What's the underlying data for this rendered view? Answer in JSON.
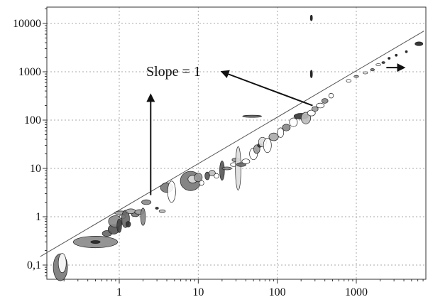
{
  "chart_data": {
    "type": "scatter",
    "title": "",
    "xlabel": "",
    "ylabel": "",
    "xscale": "log",
    "yscale": "log",
    "xlim": [
      0.1,
      8000
    ],
    "ylim": [
      0.05,
      20000
    ],
    "grid": true,
    "x_ticks": [
      {
        "value": 1,
        "label": "1"
      },
      {
        "value": 10,
        "label": "10"
      },
      {
        "value": 100,
        "label": "100"
      },
      {
        "value": 1000,
        "label": "1000"
      }
    ],
    "y_ticks": [
      {
        "value": 0.1,
        "label": "0,1"
      },
      {
        "value": 1,
        "label": "1"
      },
      {
        "value": 10,
        "label": "10"
      },
      {
        "value": 100,
        "label": "100"
      },
      {
        "value": 1000,
        "label": "1000"
      },
      {
        "value": 10000,
        "label": "10000"
      }
    ],
    "reference_line": {
      "slope": 1,
      "from": [
        0.1,
        0.15
      ],
      "to": [
        7200,
        7000
      ]
    },
    "annotation": {
      "text": "Slope = 1"
    },
    "arrows": [
      {
        "from": [
          2.5,
          2.8
        ],
        "to": [
          2.5,
          330
        ]
      },
      {
        "from": [
          280,
          200
        ],
        "to": [
          20,
          1000
        ]
      },
      {
        "from": [
          2400,
          1220
        ],
        "to": [
          4000,
          1220
        ]
      }
    ],
    "points": [
      {
        "x": 0.18,
        "y": 0.09,
        "rx": 0.09,
        "ry": 0.28,
        "fill": "#777777"
      },
      {
        "x": 0.19,
        "y": 0.11,
        "rx": 0.05,
        "ry": 0.2,
        "fill": "#ffffff"
      },
      {
        "x": 0.5,
        "y": 0.3,
        "rx": 0.28,
        "ry": 0.12,
        "fill": "#888888"
      },
      {
        "x": 0.5,
        "y": 0.3,
        "rx": 0.06,
        "ry": 0.03,
        "fill": "#222222"
      },
      {
        "x": 0.7,
        "y": 0.45,
        "rx": 0.06,
        "ry": 0.06,
        "fill": "#666666"
      },
      {
        "x": 0.85,
        "y": 0.55,
        "rx": 0.07,
        "ry": 0.1,
        "fill": "#555555"
      },
      {
        "x": 0.9,
        "y": 0.8,
        "rx": 0.09,
        "ry": 0.12,
        "fill": "#888888"
      },
      {
        "x": 1.0,
        "y": 0.65,
        "rx": 0.03,
        "ry": 0.14,
        "fill": "#444444"
      },
      {
        "x": 1.05,
        "y": 1.2,
        "rx": 0.08,
        "ry": 0.04,
        "fill": "#999999"
      },
      {
        "x": 1.1,
        "y": 1.0,
        "rx": 0.04,
        "ry": 0.04,
        "fill": "#ffffff"
      },
      {
        "x": 1.2,
        "y": 0.9,
        "rx": 0.05,
        "ry": 0.18,
        "fill": "#666666"
      },
      {
        "x": 1.3,
        "y": 0.7,
        "rx": 0.03,
        "ry": 0.06,
        "fill": "#333333"
      },
      {
        "x": 1.4,
        "y": 1.3,
        "rx": 0.06,
        "ry": 0.05,
        "fill": "#aaaaaa"
      },
      {
        "x": 1.6,
        "y": 1.1,
        "rx": 0.05,
        "ry": 0.04,
        "fill": "#777777"
      },
      {
        "x": 1.8,
        "y": 1.25,
        "rx": 0.06,
        "ry": 0.05,
        "fill": "#999999"
      },
      {
        "x": 2.2,
        "y": 2.0,
        "rx": 0.06,
        "ry": 0.05,
        "fill": "#888888"
      },
      {
        "x": 2.0,
        "y": 1.0,
        "rx": 0.03,
        "ry": 0.18,
        "fill": "#888888"
      },
      {
        "x": 3.0,
        "y": 1.5,
        "rx": 0.02,
        "ry": 0.02,
        "fill": "#222222"
      },
      {
        "x": 3.5,
        "y": 1.3,
        "rx": 0.04,
        "ry": 0.03,
        "fill": "#bbbbbb"
      },
      {
        "x": 4.0,
        "y": 4.0,
        "rx": 0.08,
        "ry": 0.1,
        "fill": "#777777"
      },
      {
        "x": 4.6,
        "y": 3.3,
        "rx": 0.05,
        "ry": 0.22,
        "fill": "#ffffff"
      },
      {
        "x": 8.0,
        "y": 5.5,
        "rx": 0.13,
        "ry": 0.2,
        "fill": "#777777"
      },
      {
        "x": 8.5,
        "y": 6.0,
        "rx": 0.06,
        "ry": 0.08,
        "fill": "#dddddd"
      },
      {
        "x": 10.0,
        "y": 6.5,
        "rx": 0.05,
        "ry": 0.09,
        "fill": "#999999"
      },
      {
        "x": 11.0,
        "y": 5.0,
        "rx": 0.03,
        "ry": 0.05,
        "fill": "#ffffff"
      },
      {
        "x": 13.0,
        "y": 7.0,
        "rx": 0.03,
        "ry": 0.08,
        "fill": "#555555"
      },
      {
        "x": 15.0,
        "y": 8.0,
        "rx": 0.04,
        "ry": 0.06,
        "fill": "#bbbbbb"
      },
      {
        "x": 17.0,
        "y": 7.0,
        "rx": 0.03,
        "ry": 0.05,
        "fill": "#ffffff"
      },
      {
        "x": 20.0,
        "y": 9.0,
        "rx": 0.03,
        "ry": 0.2,
        "fill": "#555555"
      },
      {
        "x": 23.0,
        "y": 10.0,
        "rx": 0.06,
        "ry": 0.03,
        "fill": "#888888"
      },
      {
        "x": 28.0,
        "y": 12.0,
        "rx": 0.04,
        "ry": 0.04,
        "fill": "#ffffff"
      },
      {
        "x": 30.0,
        "y": 15.0,
        "rx": 0.05,
        "ry": 0.04,
        "fill": "#999999"
      },
      {
        "x": 32.0,
        "y": 10.0,
        "rx": 0.035,
        "ry": 0.45,
        "fill": "#dddddd"
      },
      {
        "x": 35.0,
        "y": 12.0,
        "rx": 0.06,
        "ry": 0.04,
        "fill": "#666666"
      },
      {
        "x": 40.0,
        "y": 14.0,
        "rx": 0.05,
        "ry": 0.05,
        "fill": "#ffffff"
      },
      {
        "x": 48.0,
        "y": 120.0,
        "rx": 0.12,
        "ry": 0.015,
        "fill": "#666666"
      },
      {
        "x": 50.0,
        "y": 20.0,
        "rx": 0.05,
        "ry": 0.12,
        "fill": "#ffffff"
      },
      {
        "x": 55.0,
        "y": 25.0,
        "rx": 0.04,
        "ry": 0.09,
        "fill": "#999999"
      },
      {
        "x": 60.0,
        "y": 30.0,
        "rx": 0.03,
        "ry": 0.04,
        "fill": "#333333"
      },
      {
        "x": 65.0,
        "y": 35.0,
        "rx": 0.05,
        "ry": 0.1,
        "fill": "#dddddd"
      },
      {
        "x": 75.0,
        "y": 30.0,
        "rx": 0.05,
        "ry": 0.15,
        "fill": "#ffffff"
      },
      {
        "x": 90.0,
        "y": 45.0,
        "rx": 0.06,
        "ry": 0.08,
        "fill": "#aaaaaa"
      },
      {
        "x": 110.0,
        "y": 55.0,
        "rx": 0.04,
        "ry": 0.1,
        "fill": "#ffffff"
      },
      {
        "x": 130.0,
        "y": 70.0,
        "rx": 0.05,
        "ry": 0.07,
        "fill": "#888888"
      },
      {
        "x": 160.0,
        "y": 90.0,
        "rx": 0.05,
        "ry": 0.09,
        "fill": "#ffffff"
      },
      {
        "x": 200.0,
        "y": 120.0,
        "rx": 0.09,
        "ry": 0.06,
        "fill": "#333333"
      },
      {
        "x": 230.0,
        "y": 110.0,
        "rx": 0.06,
        "ry": 0.12,
        "fill": "#bbbbbb"
      },
      {
        "x": 270.0,
        "y": 140.0,
        "rx": 0.05,
        "ry": 0.06,
        "fill": "#ffffff"
      },
      {
        "x": 300.0,
        "y": 170.0,
        "rx": 0.04,
        "ry": 0.05,
        "fill": "#999999"
      },
      {
        "x": 350.0,
        "y": 200.0,
        "rx": 0.05,
        "ry": 0.05,
        "fill": "#ffffff"
      },
      {
        "x": 400.0,
        "y": 250.0,
        "rx": 0.04,
        "ry": 0.05,
        "fill": "#888888"
      },
      {
        "x": 480.0,
        "y": 320.0,
        "rx": 0.03,
        "ry": 0.05,
        "fill": "#ffffff"
      },
      {
        "x": 270.0,
        "y": 13000.0,
        "rx": 0.012,
        "ry": 0.06,
        "fill": "#111111"
      },
      {
        "x": 270.0,
        "y": 900.0,
        "rx": 0.012,
        "ry": 0.08,
        "fill": "#111111"
      },
      {
        "x": 800.0,
        "y": 650.0,
        "rx": 0.03,
        "ry": 0.03,
        "fill": "#ffffff"
      },
      {
        "x": 1000.0,
        "y": 800.0,
        "rx": 0.03,
        "ry": 0.02,
        "fill": "#999999"
      },
      {
        "x": 1300.0,
        "y": 950.0,
        "rx": 0.03,
        "ry": 0.02,
        "fill": "#ffffff"
      },
      {
        "x": 1600.0,
        "y": 1100.0,
        "rx": 0.025,
        "ry": 0.025,
        "fill": "#777777"
      },
      {
        "x": 1900.0,
        "y": 1400.0,
        "rx": 0.03,
        "ry": 0.02,
        "fill": "#ffffff"
      },
      {
        "x": 2200.0,
        "y": 1550.0,
        "rx": 0.02,
        "ry": 0.02,
        "fill": "#333333"
      },
      {
        "x": 2600.0,
        "y": 1900.0,
        "rx": 0.015,
        "ry": 0.015,
        "fill": "#111111"
      },
      {
        "x": 3200.0,
        "y": 2200.0,
        "rx": 0.01,
        "ry": 0.01,
        "fill": "#111111"
      },
      {
        "x": 4300.0,
        "y": 2600.0,
        "rx": 0.01,
        "ry": 0.01,
        "fill": "#111111"
      },
      {
        "x": 6200.0,
        "y": 3800.0,
        "rx": 0.05,
        "ry": 0.04,
        "fill": "#222222"
      }
    ]
  }
}
